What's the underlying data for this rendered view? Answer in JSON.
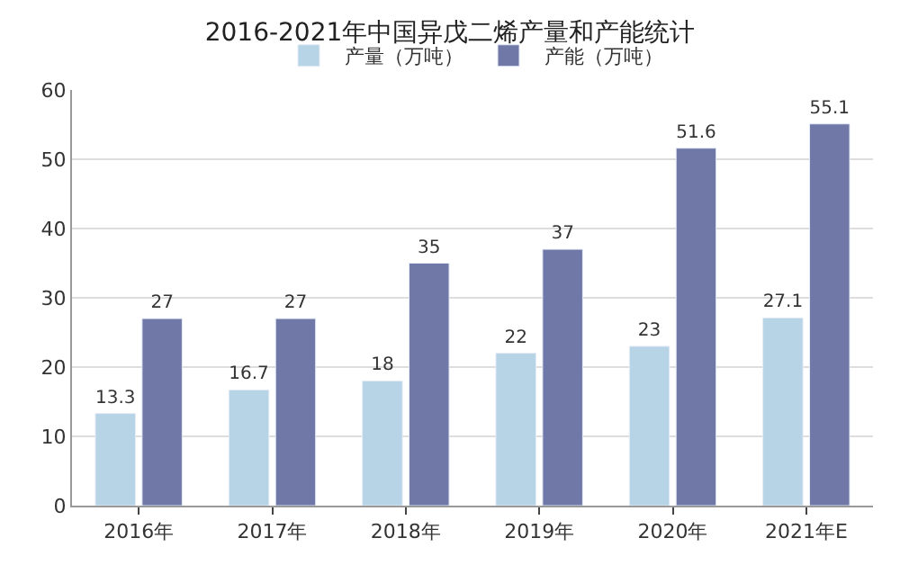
{
  "chart_data": {
    "type": "bar",
    "title": "2016-2021年中国异戊二烯产量和产能统计",
    "categories": [
      "2016年",
      "2017年",
      "2018年",
      "2019年",
      "2020年",
      "2021年E"
    ],
    "series": [
      {
        "name": "产量（万吨）",
        "color": "#b7d3e6",
        "values": [
          13.3,
          16.7,
          18,
          22,
          23,
          27.1
        ]
      },
      {
        "name": "产能（万吨）",
        "color": "#6f78a6",
        "values": [
          27,
          27,
          35,
          37,
          51.6,
          55.1
        ]
      }
    ],
    "ylim": [
      0,
      60
    ],
    "yticks": [
      0,
      10,
      20,
      30,
      40,
      50,
      60
    ],
    "grid": "y",
    "legend": "top",
    "data_labels": true
  }
}
